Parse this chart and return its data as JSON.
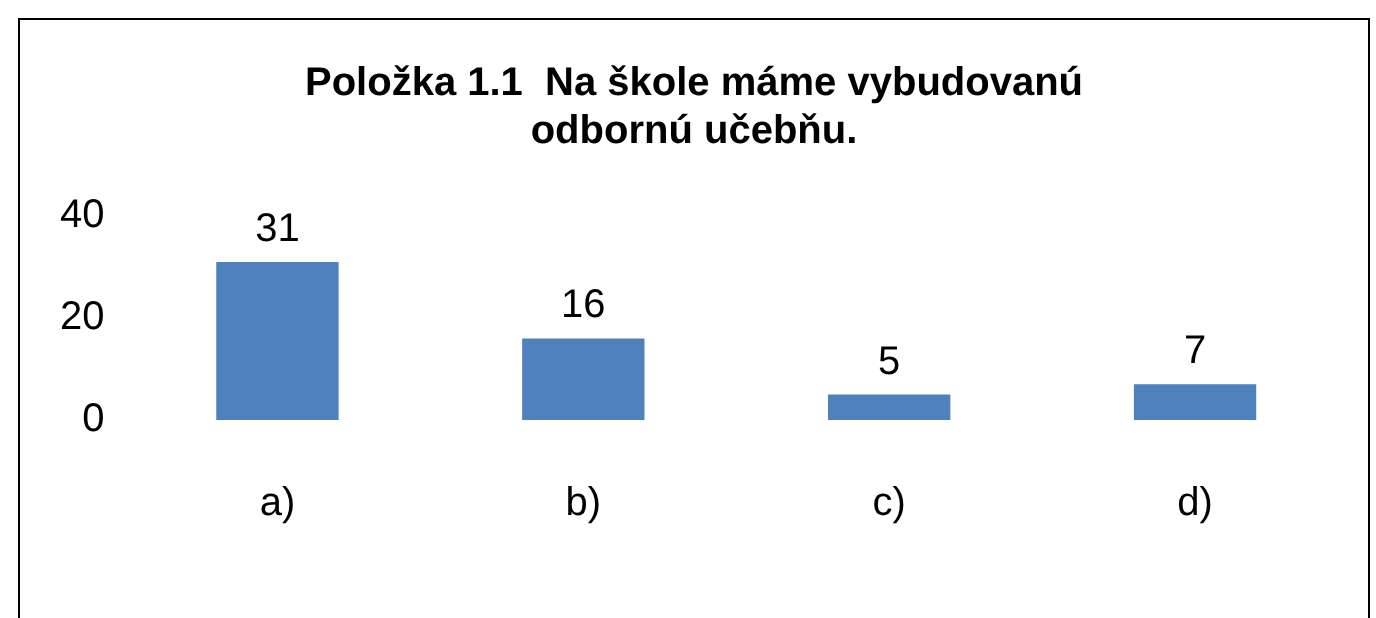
{
  "chart_data": {
    "type": "bar",
    "title": "Položka 1.1  Na škole máme vybudovanú odbornú učebňu.",
    "categories": [
      "a)",
      "b)",
      "c)",
      "d)"
    ],
    "values": [
      31,
      16,
      5,
      7
    ],
    "color": "#4f81bd",
    "ylim": [
      0,
      40
    ],
    "yticks": [
      0,
      20,
      40
    ],
    "grid": false,
    "legend": false,
    "data_labels": true
  }
}
